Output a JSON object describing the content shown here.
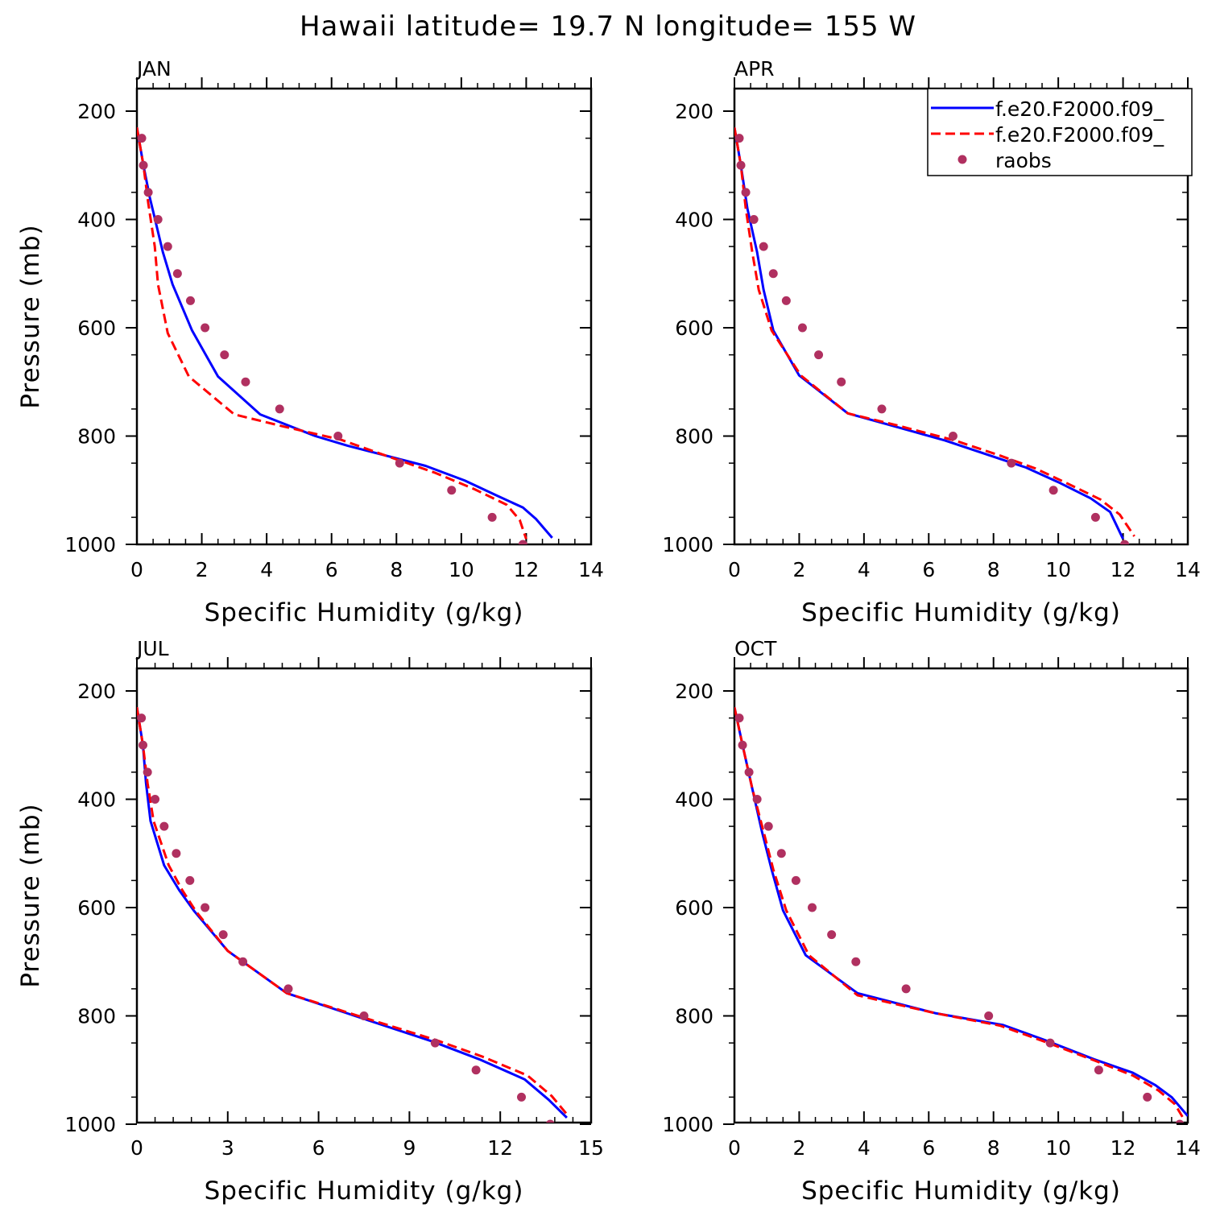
{
  "title": "Hawaii  latitude= 19.7 N longitude= 155 W",
  "legend": {
    "placement": "top-right",
    "series": [
      {
        "label": "f.e20.F2000.f09_",
        "color": "#0000ff",
        "style": "solid"
      },
      {
        "label": "f.e20.F2000.f09_",
        "color": "#ff0000",
        "style": "dashed"
      },
      {
        "label": "raobs",
        "color": "#b03060",
        "style": "dots"
      }
    ]
  },
  "chart_data": [
    {
      "type": "line",
      "panel_title": "JAN",
      "xlabel": "Specific Humidity (g/kg)",
      "ylabel": "Pressure (mb)",
      "xlim": [
        0,
        14
      ],
      "xticks": [
        "0",
        "2",
        "4",
        "6",
        "8",
        "10",
        "12",
        "14"
      ],
      "ylim": [
        200,
        1000
      ],
      "ylabel_position": "left",
      "yticks": [
        "200",
        "400",
        "600",
        "800",
        "1000"
      ],
      "y_inverted": true,
      "grid": false,
      "show_legend": false,
      "series": [
        {
          "color": "#0000ff",
          "style": "solid",
          "points": [
            [
              0.0,
              230
            ],
            [
              0.2,
              300
            ],
            [
              0.4,
              360
            ],
            [
              0.8,
              460
            ],
            [
              1.1,
              520
            ],
            [
              1.7,
              605
            ],
            [
              2.5,
              690
            ],
            [
              3.8,
              760
            ],
            [
              5.5,
              800
            ],
            [
              6.5,
              818
            ],
            [
              8.9,
              855
            ],
            [
              10.1,
              882
            ],
            [
              11.1,
              910
            ],
            [
              11.9,
              932
            ],
            [
              12.3,
              953
            ],
            [
              12.8,
              988
            ]
          ]
        },
        {
          "color": "#ff0000",
          "style": "dashed",
          "points": [
            [
              0.0,
              230
            ],
            [
              0.2,
              300
            ],
            [
              0.35,
              370
            ],
            [
              0.55,
              450
            ],
            [
              0.65,
              520
            ],
            [
              0.95,
              610
            ],
            [
              1.6,
              690
            ],
            [
              3.0,
              760
            ],
            [
              4.5,
              782
            ],
            [
              6.3,
              807
            ],
            [
              8.0,
              843
            ],
            [
              9.2,
              868
            ],
            [
              10.4,
              898
            ],
            [
              11.4,
              927
            ],
            [
              11.8,
              955
            ],
            [
              12.0,
              990
            ]
          ]
        },
        {
          "color": "#b03060",
          "style": "dots",
          "points": [
            [
              0.15,
              250
            ],
            [
              0.2,
              300
            ],
            [
              0.35,
              350
            ],
            [
              0.65,
              400
            ],
            [
              0.95,
              450
            ],
            [
              1.25,
              500
            ],
            [
              1.65,
              550
            ],
            [
              2.1,
              600
            ],
            [
              2.7,
              650
            ],
            [
              3.35,
              700
            ],
            [
              4.4,
              750
            ],
            [
              6.2,
              800
            ],
            [
              8.1,
              850
            ],
            [
              9.7,
              900
            ],
            [
              10.95,
              950
            ],
            [
              11.9,
              1000
            ]
          ]
        }
      ]
    },
    {
      "type": "line",
      "panel_title": "APR",
      "xlabel": "Specific Humidity (g/kg)",
      "ylabel": "",
      "xlim": [
        0,
        14
      ],
      "xticks": [
        "0",
        "2",
        "4",
        "6",
        "8",
        "10",
        "12",
        "14"
      ],
      "ylim": [
        200,
        1000
      ],
      "ylabel_position": "left",
      "yticks": [
        "200",
        "400",
        "600",
        "800",
        "1000"
      ],
      "y_inverted": true,
      "grid": false,
      "show_legend": true,
      "series": [
        {
          "color": "#0000ff",
          "style": "solid",
          "points": [
            [
              0.0,
              230
            ],
            [
              0.2,
              300
            ],
            [
              0.4,
              380
            ],
            [
              0.7,
              460
            ],
            [
              0.9,
              530
            ],
            [
              1.2,
              605
            ],
            [
              2.0,
              688
            ],
            [
              3.5,
              758
            ],
            [
              5.0,
              783
            ],
            [
              6.5,
              808
            ],
            [
              8.1,
              840
            ],
            [
              9.0,
              858
            ],
            [
              10.0,
              885
            ],
            [
              11.0,
              915
            ],
            [
              11.6,
              940
            ],
            [
              12.0,
              990
            ]
          ]
        },
        {
          "color": "#ff0000",
          "style": "dashed",
          "points": [
            [
              0.0,
              230
            ],
            [
              0.2,
              300
            ],
            [
              0.35,
              380
            ],
            [
              0.55,
              460
            ],
            [
              0.75,
              530
            ],
            [
              1.15,
              605
            ],
            [
              2.05,
              688
            ],
            [
              3.5,
              758
            ],
            [
              5.0,
              780
            ],
            [
              6.8,
              808
            ],
            [
              8.2,
              836
            ],
            [
              9.3,
              860
            ],
            [
              10.3,
              888
            ],
            [
              11.3,
              917
            ],
            [
              11.9,
              945
            ],
            [
              12.35,
              985
            ]
          ]
        },
        {
          "color": "#b03060",
          "style": "dots",
          "points": [
            [
              0.15,
              250
            ],
            [
              0.2,
              300
            ],
            [
              0.35,
              350
            ],
            [
              0.6,
              400
            ],
            [
              0.9,
              450
            ],
            [
              1.2,
              500
            ],
            [
              1.6,
              550
            ],
            [
              2.1,
              600
            ],
            [
              2.6,
              650
            ],
            [
              3.3,
              700
            ],
            [
              4.55,
              750
            ],
            [
              6.75,
              800
            ],
            [
              8.55,
              850
            ],
            [
              9.85,
              900
            ],
            [
              11.15,
              950
            ],
            [
              12.05,
              1000
            ]
          ]
        }
      ]
    },
    {
      "type": "line",
      "panel_title": "JUL",
      "xlabel": "Specific Humidity (g/kg)",
      "ylabel": "Pressure (mb)",
      "xlim": [
        0,
        15
      ],
      "xticks": [
        "0",
        "3",
        "6",
        "9",
        "12",
        "15"
      ],
      "ylim": [
        200,
        1000
      ],
      "ylabel_position": "left",
      "yticks": [
        "200",
        "400",
        "600",
        "800",
        "1000"
      ],
      "y_inverted": true,
      "grid": false,
      "show_legend": false,
      "series": [
        {
          "color": "#0000ff",
          "style": "solid",
          "points": [
            [
              0.0,
              230
            ],
            [
              0.2,
              300
            ],
            [
              0.3,
              370
            ],
            [
              0.45,
              440
            ],
            [
              0.9,
              522
            ],
            [
              1.4,
              568
            ],
            [
              1.9,
              607
            ],
            [
              3.0,
              680
            ],
            [
              4.95,
              758
            ],
            [
              7.2,
              800
            ],
            [
              9.8,
              848
            ],
            [
              11.3,
              880
            ],
            [
              12.8,
              917
            ],
            [
              13.6,
              955
            ],
            [
              14.2,
              988
            ]
          ]
        },
        {
          "color": "#ff0000",
          "style": "dashed",
          "points": [
            [
              0.0,
              230
            ],
            [
              0.2,
              300
            ],
            [
              0.35,
              370
            ],
            [
              0.55,
              440
            ],
            [
              1.05,
              522
            ],
            [
              1.5,
              568
            ],
            [
              1.95,
              607
            ],
            [
              3.0,
              680
            ],
            [
              4.95,
              758
            ],
            [
              7.2,
              798
            ],
            [
              9.9,
              845
            ],
            [
              11.4,
              875
            ],
            [
              12.9,
              910
            ],
            [
              13.7,
              948
            ],
            [
              14.25,
              985
            ]
          ]
        },
        {
          "color": "#b03060",
          "style": "dots",
          "points": [
            [
              0.15,
              250
            ],
            [
              0.2,
              300
            ],
            [
              0.35,
              350
            ],
            [
              0.6,
              400
            ],
            [
              0.9,
              450
            ],
            [
              1.3,
              500
            ],
            [
              1.75,
              550
            ],
            [
              2.25,
              600
            ],
            [
              2.85,
              650
            ],
            [
              3.5,
              700
            ],
            [
              5.0,
              750
            ],
            [
              7.5,
              800
            ],
            [
              9.85,
              850
            ],
            [
              11.2,
              900
            ],
            [
              12.7,
              950
            ],
            [
              13.65,
              1000
            ]
          ]
        }
      ]
    },
    {
      "type": "line",
      "panel_title": "OCT",
      "xlabel": "Specific Humidity (g/kg)",
      "ylabel": "",
      "xlim": [
        0,
        14
      ],
      "xticks": [
        "0",
        "2",
        "4",
        "6",
        "8",
        "10",
        "12",
        "14"
      ],
      "ylim": [
        200,
        1000
      ],
      "ylabel_position": "left",
      "yticks": [
        "200",
        "400",
        "600",
        "800",
        "1000"
      ],
      "y_inverted": true,
      "grid": false,
      "show_legend": false,
      "series": [
        {
          "color": "#0000ff",
          "style": "solid",
          "points": [
            [
              0.0,
              230
            ],
            [
              0.25,
              300
            ],
            [
              0.55,
              380
            ],
            [
              0.85,
              460
            ],
            [
              1.15,
              530
            ],
            [
              1.5,
              605
            ],
            [
              2.2,
              688
            ],
            [
              3.8,
              758
            ],
            [
              6.2,
              795
            ],
            [
              8.3,
              817
            ],
            [
              9.6,
              845
            ],
            [
              11.1,
              880
            ],
            [
              12.3,
              905
            ],
            [
              13.0,
              928
            ],
            [
              13.5,
              950
            ],
            [
              14.0,
              985
            ]
          ]
        },
        {
          "color": "#ff0000",
          "style": "dashed",
          "points": [
            [
              0.0,
              230
            ],
            [
              0.25,
              300
            ],
            [
              0.55,
              380
            ],
            [
              0.9,
              460
            ],
            [
              1.2,
              530
            ],
            [
              1.6,
              605
            ],
            [
              2.3,
              688
            ],
            [
              3.8,
              762
            ],
            [
              6.2,
              795
            ],
            [
              8.2,
              818
            ],
            [
              9.6,
              848
            ],
            [
              11.1,
              882
            ],
            [
              12.3,
              910
            ],
            [
              13.1,
              938
            ],
            [
              13.6,
              963
            ],
            [
              13.9,
              993
            ]
          ]
        },
        {
          "color": "#b03060",
          "style": "dots",
          "points": [
            [
              0.15,
              250
            ],
            [
              0.25,
              300
            ],
            [
              0.45,
              350
            ],
            [
              0.7,
              400
            ],
            [
              1.05,
              450
            ],
            [
              1.45,
              500
            ],
            [
              1.9,
              550
            ],
            [
              2.4,
              600
            ],
            [
              3.0,
              650
            ],
            [
              3.75,
              700
            ],
            [
              5.3,
              750
            ],
            [
              7.85,
              800
            ],
            [
              9.75,
              850
            ],
            [
              11.25,
              900
            ],
            [
              12.75,
              950
            ],
            [
              13.75,
              1000
            ]
          ]
        }
      ]
    }
  ]
}
